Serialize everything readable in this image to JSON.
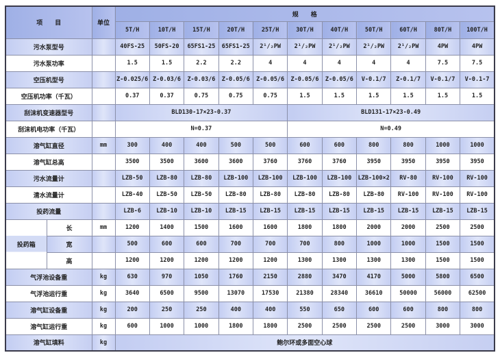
{
  "header": {
    "item": "项　　目",
    "unit": "单位",
    "spec": "规　　格",
    "capacities": [
      "5T/H",
      "10T/H",
      "15T/H",
      "20T/H",
      "25T/H",
      "30T/H",
      "40T/H",
      "50T/H",
      "60T/H",
      "80T/H",
      "100T/H"
    ]
  },
  "rows": [
    {
      "label": "污水泵型号",
      "unit": "",
      "shade": true,
      "values": [
        "40FS-25",
        "50FS-20",
        "65FS1-25",
        "65FS1-25",
        "2¹/₂PW",
        "2¹/₂PW",
        "2¹/₂PW",
        "2¹/₂PW",
        "2¹/₂PW",
        "4PW",
        "4PW"
      ]
    },
    {
      "label": "污水泵功率",
      "unit": "",
      "shade": false,
      "values": [
        "1.5",
        "1.5",
        "2.2",
        "2.2",
        "4",
        "4",
        "4",
        "4",
        "4",
        "7.5",
        "7.5"
      ]
    },
    {
      "label": "空压机型号",
      "unit": "",
      "shade": true,
      "values": [
        "Z-0.025/6",
        "Z-0.03/6",
        "Z-0.03/6",
        "Z-0.05/6",
        "Z-0.05/6",
        "Z-0.05/6",
        "Z-0.05/6",
        "V-0.1/7",
        "Z-0.1/7",
        "V-0.1/7",
        "V-0.1-7"
      ]
    },
    {
      "label": "空压机功率（千瓦）",
      "unit": "",
      "shade": false,
      "values": [
        "0.37",
        "0.37",
        "0.75",
        "0.75",
        "0.75",
        "1.5",
        "1.5",
        "1.5",
        "1.5",
        "1.5",
        "1.5"
      ]
    },
    {
      "label": "刮沫机变速器型号",
      "unit": "",
      "shade": true,
      "merged": [
        "BLD130-17×23-0.37",
        "BLD131-17×23-0.49"
      ]
    },
    {
      "label": "刮沫机电功率（千瓦）",
      "unit": "",
      "shade": false,
      "merged": [
        "N=0.37",
        "N=0.49"
      ]
    },
    {
      "label": "溶气缸直径",
      "unit": "mm",
      "shade": true,
      "values": [
        "300",
        "400",
        "400",
        "500",
        "500",
        "600",
        "600",
        "800",
        "800",
        "1000",
        "1000"
      ]
    },
    {
      "label": "溶气缸总高",
      "unit": "",
      "shade": false,
      "values": [
        "3500",
        "3500",
        "3600",
        "3600",
        "3760",
        "3760",
        "3760",
        "3950",
        "3950",
        "3950",
        "3950"
      ]
    },
    {
      "label": "污水流量计",
      "unit": "",
      "shade": true,
      "values": [
        "LZB-50",
        "LZB-80",
        "LZB-80",
        "LZB-100",
        "LZB-100",
        "LZB-100",
        "LZB-100",
        "LZB-100×2",
        "RV-80",
        "RV-100",
        "RV-100"
      ]
    },
    {
      "label": "清水流量计",
      "unit": "",
      "shade": false,
      "values": [
        "LZB-40",
        "LZB-50",
        "LZB-50",
        "LZB-80",
        "LZB-80",
        "LZB-80",
        "LZB-80",
        "LZB-80",
        "RV-100",
        "RV-100",
        "RV-100"
      ]
    },
    {
      "label": "投药流量",
      "unit": "",
      "shade": true,
      "values": [
        "LZB-6",
        "LZB-10",
        "LZB-10",
        "LZB-15",
        "LZB-15",
        "LZB-15",
        "LZB-15",
        "LZB-15",
        "LZB-15",
        "LZB-15",
        "LZB-15"
      ]
    },
    {
      "group": "投药箱",
      "label": "长",
      "unit": "mm",
      "shade": false,
      "values": [
        "1200",
        "1400",
        "1500",
        "1600",
        "1600",
        "1800",
        "1800",
        "2000",
        "2000",
        "2500",
        "2500"
      ]
    },
    {
      "group": "投药箱",
      "label": "宽",
      "unit": "",
      "shade": true,
      "values": [
        "500",
        "600",
        "600",
        "700",
        "700",
        "700",
        "800",
        "1000",
        "1000",
        "1500",
        "1500"
      ]
    },
    {
      "group": "投药箱",
      "label": "高",
      "unit": "",
      "shade": false,
      "values": [
        "1200",
        "1200",
        "1200",
        "1200",
        "1200",
        "1300",
        "1300",
        "1300",
        "1300",
        "1500",
        "1500"
      ]
    },
    {
      "label": "气浮池设备重",
      "unit": "kg",
      "shade": true,
      "values": [
        "630",
        "970",
        "1050",
        "1760",
        "2150",
        "2880",
        "3470",
        "4170",
        "5000",
        "5800",
        "6500"
      ]
    },
    {
      "label": "气浮池运行重",
      "unit": "kg",
      "shade": false,
      "values": [
        "3640",
        "6500",
        "9500",
        "13070",
        "17530",
        "21380",
        "28340",
        "36610",
        "50000",
        "56000",
        "62500"
      ]
    },
    {
      "label": "溶气缸设备重",
      "unit": "kg",
      "shade": true,
      "values": [
        "200",
        "250",
        "250",
        "400",
        "400",
        "550",
        "650",
        "600",
        "600",
        "800",
        "800"
      ]
    },
    {
      "label": "溶气缸运行重",
      "unit": "kg",
      "shade": false,
      "values": [
        "600",
        "1000",
        "1000",
        "1800",
        "1800",
        "2500",
        "2500",
        "2500",
        "2500",
        "3000",
        "3000"
      ]
    },
    {
      "label": "溶气缸填料",
      "unit": "kg",
      "shade": true,
      "full": "鲍尔环或多面空心球"
    }
  ]
}
